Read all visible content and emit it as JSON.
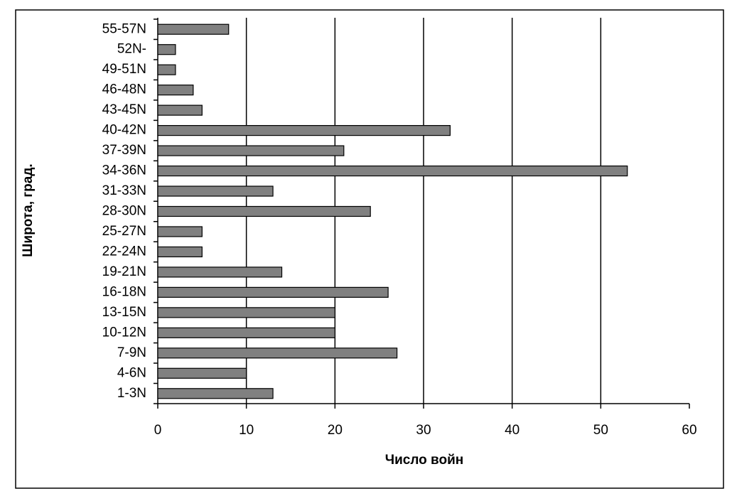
{
  "chart_data": {
    "type": "bar",
    "orientation": "horizontal",
    "x_label": "Число войн",
    "y_label": "Широта, град.",
    "categories": [
      "55-57N",
      "52N-",
      "49-51N",
      "46-48N",
      "43-45N",
      "40-42N",
      "37-39N",
      "34-36N",
      "31-33N",
      "28-30N",
      "25-27N",
      "22-24N",
      "19-21N",
      "16-18N",
      "13-15N",
      "10-12N",
      "7-9N",
      "4-6N",
      "1-3N"
    ],
    "values": [
      8,
      2,
      2,
      4,
      5,
      33,
      21,
      53,
      13,
      24,
      5,
      5,
      14,
      26,
      20,
      20,
      27,
      10,
      13
    ],
    "color": "#808080",
    "xlim": [
      0,
      60
    ],
    "xticks": [
      0,
      10,
      20,
      30,
      40,
      50,
      60
    ],
    "grid": true
  }
}
